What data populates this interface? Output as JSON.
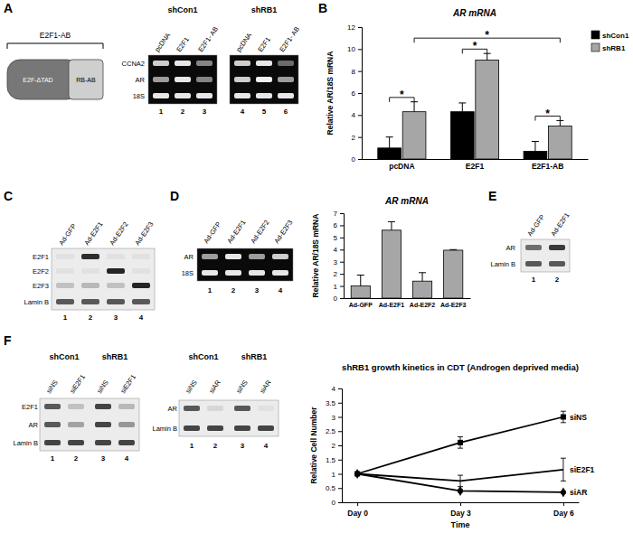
{
  "panel_letters": [
    "A",
    "B",
    "C",
    "D",
    "E",
    "F"
  ],
  "diagram": {
    "label": "E2F1-AB",
    "parts": [
      "E2F-ΔTAD",
      "RB-AB"
    ]
  },
  "blots": [
    {
      "kind": "gel",
      "groups": [
        {
          "label": "shCon1",
          "columns": [
            "pcDNA",
            "E2F1",
            "E2F1- AB"
          ]
        },
        {
          "label": "shRB1",
          "columns": [
            "pcDNA",
            "E2F1",
            "E2F1- AB"
          ]
        }
      ],
      "rows": [
        "CCNA2",
        "AR",
        "18S"
      ],
      "bands": [
        [
          0.8,
          0.9,
          0.5,
          0.8,
          0.9,
          0.4
        ],
        [
          0.6,
          0.9,
          0.5,
          0.8,
          0.95,
          0.6
        ],
        [
          0.9,
          0.9,
          0.9,
          0.9,
          0.9,
          0.9
        ]
      ],
      "lanes": [
        1,
        2,
        3,
        4,
        5,
        6
      ]
    },
    {
      "kind": "western",
      "columns": [
        "Ad-GFP",
        "Ad-E2F1",
        "Ad-E2F2",
        "Ad-E2F3"
      ],
      "rows": [
        "E2F1",
        "E2F2",
        "E2F3",
        "Lamin B"
      ],
      "bands": [
        [
          0.05,
          0.9,
          0.05,
          0.05
        ],
        [
          0.05,
          0.05,
          0.95,
          0.05
        ],
        [
          0.2,
          0.25,
          0.2,
          0.95
        ],
        [
          0.7,
          0.7,
          0.7,
          0.7
        ]
      ],
      "lanes": [
        1,
        2,
        3,
        4
      ]
    },
    {
      "kind": "gel",
      "columns": [
        "Ad-GFP",
        "Ad-E2F1",
        "Ad-E2F2",
        "Ad-E2F3"
      ],
      "rows": [
        "AR",
        "18S"
      ],
      "bands": [
        [
          0.6,
          0.9,
          0.6,
          0.8
        ],
        [
          0.9,
          0.9,
          0.9,
          0.9
        ]
      ],
      "lanes": [
        1,
        2,
        3,
        4
      ]
    },
    {
      "kind": "western",
      "columns": [
        "Ad-GFP",
        "Ad-E2F1"
      ],
      "rows": [
        "AR",
        "Lamin B"
      ],
      "bands": [
        [
          0.6,
          0.85
        ],
        [
          0.7,
          0.7
        ]
      ],
      "lanes": [
        1,
        2
      ]
    },
    {
      "kind": "western",
      "groups": [
        {
          "label": "shCon1",
          "columns": [
            "siNS",
            "siE2F1"
          ]
        },
        {
          "label": "shRB1",
          "columns": [
            "siNS",
            "siE2F1"
          ]
        }
      ],
      "rows": [
        "E2F1",
        "AR",
        "Lamin B"
      ],
      "bands": [
        [
          0.7,
          0.2,
          0.8,
          0.25
        ],
        [
          0.7,
          0.35,
          0.8,
          0.4
        ],
        [
          0.8,
          0.8,
          0.8,
          0.8
        ]
      ],
      "lanes": [
        1,
        2,
        3,
        4
      ]
    },
    {
      "kind": "western",
      "groups": [
        {
          "label": "shCon1",
          "columns": [
            "siNS",
            "siAR"
          ]
        },
        {
          "label": "shRB1",
          "columns": [
            "siNS",
            "siAR"
          ]
        }
      ],
      "rows": [
        "AR",
        "Lamin B"
      ],
      "bands": [
        [
          0.7,
          0.1,
          0.7,
          0.05
        ],
        [
          0.8,
          0.8,
          0.8,
          0.8
        ]
      ],
      "lanes": [
        1,
        2,
        3,
        4
      ]
    }
  ],
  "chart_data": [
    {
      "type": "bar",
      "title": "AR mRNA",
      "y_label": "Relative AR/18S mRNA",
      "categories": [
        "pcDNA",
        "E2F1",
        "E2F1-AB"
      ],
      "series": [
        {
          "name": "shCon1",
          "color": "#000000",
          "values": [
            1.0,
            4.3,
            0.7
          ],
          "error": [
            1.0,
            0.8,
            0.9
          ]
        },
        {
          "name": "shRB1",
          "color": "#a6a6a6",
          "values": [
            4.3,
            9.0,
            3.0
          ],
          "error": [
            0.9,
            0.6,
            0.5
          ]
        }
      ],
      "ylim": [
        0,
        12
      ],
      "yticks": [
        0,
        2,
        4,
        6,
        8,
        10,
        12
      ],
      "legend": "top-right",
      "annotations": [
        {
          "text": "*",
          "between": [
            [
              0,
              0
            ],
            [
              0,
              1
            ]
          ],
          "y": 5.6
        },
        {
          "text": "*",
          "between": [
            [
              1,
              0
            ],
            [
              1,
              1
            ]
          ],
          "y": 10.0
        },
        {
          "text": "*",
          "between": [
            [
              2,
              0
            ],
            [
              2,
              1
            ]
          ],
          "y": 3.9
        },
        {
          "text": "*",
          "between": [
            [
              0,
              1
            ],
            [
              2,
              1
            ]
          ],
          "y": 11.0
        }
      ]
    },
    {
      "type": "bar",
      "title": "AR mRNA",
      "y_label": "Relative AR/18S mRNA",
      "categories": [
        "Ad-GFP",
        "Ad-E2F1",
        "Ad-E2F2",
        "Ad-E2F3"
      ],
      "values": [
        1.0,
        5.6,
        1.4,
        3.95
      ],
      "error": [
        0.9,
        0.7,
        0.7,
        0.05
      ],
      "color": "#a6a6a6",
      "ylim": [
        0,
        7
      ],
      "yticks": [
        0,
        1,
        2,
        3,
        4,
        5,
        6,
        7
      ]
    },
    {
      "type": "line",
      "title": "shRB1 growth kinetics in CDT (Androgen deprived media)",
      "x_label": "Time",
      "y_label": "Relative Cell Number",
      "categories": [
        "Day 0",
        "Day 3",
        "Day 6"
      ],
      "series": [
        {
          "name": "siNS",
          "color": "#000000",
          "marker": "square",
          "values": [
            1.0,
            2.1,
            3.0
          ],
          "error": [
            0.05,
            0.2,
            0.2
          ]
        },
        {
          "name": "siE2F1",
          "color": "#000000",
          "marker": "none",
          "values": [
            1.0,
            0.75,
            1.15
          ],
          "error": [
            0.05,
            0.2,
            0.4
          ]
        },
        {
          "name": "siAR",
          "color": "#000000",
          "marker": "diamond",
          "values": [
            1.0,
            0.4,
            0.35
          ],
          "error": [
            0.05,
            0.05,
            0.04
          ]
        }
      ],
      "ylim": [
        0,
        4
      ],
      "yticks": [
        0,
        0.5,
        1,
        1.5,
        2,
        2.5,
        3,
        3.5,
        4
      ]
    }
  ]
}
